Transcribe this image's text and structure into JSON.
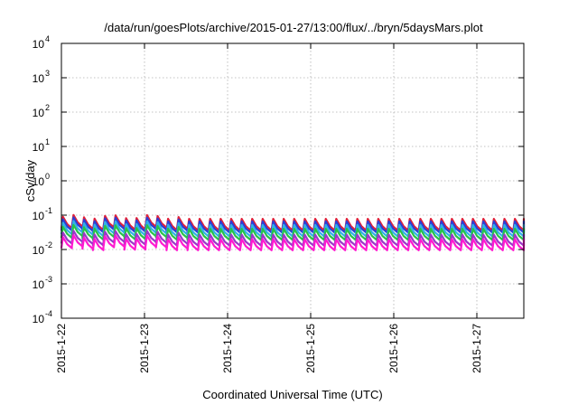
{
  "chart_data": {
    "type": "line",
    "title": "/data/run/goesPlots/archive/2015-01-27/13:00/flux/../bryn/5daysMars.plot",
    "xlabel": "Coordinated Universal Time (UTC)",
    "ylabel": "cSv/day",
    "yscale": "log",
    "ylim": [
      0.0001,
      10000
    ],
    "y_ticks": [
      {
        "base": "10",
        "exp": "-4"
      },
      {
        "base": "10",
        "exp": "-3"
      },
      {
        "base": "10",
        "exp": "-2"
      },
      {
        "base": "10",
        "exp": "-1"
      },
      {
        "base": "10",
        "exp": "0"
      },
      {
        "base": "10",
        "exp": "1"
      },
      {
        "base": "10",
        "exp": "2"
      },
      {
        "base": "10",
        "exp": "3"
      },
      {
        "base": "10",
        "exp": "4"
      }
    ],
    "x_range_days": [
      "2015-01-22",
      "2015-01-27 13:00"
    ],
    "x_tick_labels": [
      "2015-1-22",
      "2015-1-23",
      "2015-1-24",
      "2015-1-25",
      "2015-1-26",
      "2015-1-27"
    ],
    "grid": true,
    "legend": "none",
    "series": [
      {
        "color": "#e0203a",
        "peak": 0.078,
        "trough": 0.036
      },
      {
        "color": "#2b3fd6",
        "peak": 0.066,
        "trough": 0.031
      },
      {
        "color": "#30b0e8",
        "peak": 0.052,
        "trough": 0.024
      },
      {
        "color": "#28c24a",
        "peak": 0.04,
        "trough": 0.019
      },
      {
        "color": "#9a38c8",
        "peak": 0.027,
        "trough": 0.013
      },
      {
        "color": "#ff1ad0",
        "peak": 0.02,
        "trough": 0.0095
      }
    ],
    "pattern": {
      "cycle_hours": 3,
      "cycles": 44,
      "early_cycles_boost": 1.3
    }
  }
}
